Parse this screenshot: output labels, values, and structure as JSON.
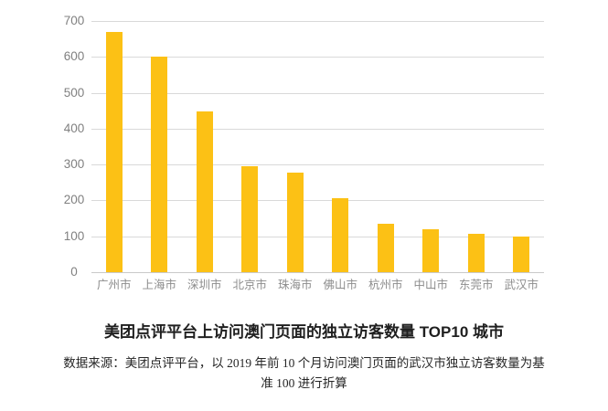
{
  "chart_data": {
    "type": "bar",
    "title": "美团点评平台上访问澳门页面的独立访客数量 TOP10 城市",
    "categories": [
      "广州市",
      "上海市",
      "深圳市",
      "北京市",
      "珠海市",
      "佛山市",
      "杭州市",
      "中山市",
      "东莞市",
      "武汉市"
    ],
    "values": [
      670,
      600,
      448,
      296,
      277,
      205,
      134,
      120,
      108,
      100
    ],
    "xlabel": "",
    "ylabel": "",
    "ylim": [
      0,
      700
    ],
    "yticks": [
      "0",
      "100",
      "200",
      "300",
      "400",
      "500",
      "600",
      "700"
    ],
    "grid": true,
    "legend": "none",
    "source_note_lines": [
      "数据来源：美团点评平台，以 2019 年前 10 个月访问澳门页面的武汉市独立访客数量为基",
      "准 100 进行折算"
    ]
  },
  "colors": {
    "bar": "#fcc115",
    "gridline": "#d9d9d9",
    "axis_label": "#808080",
    "title_text": "#1f1f1f",
    "note_text": "#262626",
    "background": "#ffffff"
  }
}
